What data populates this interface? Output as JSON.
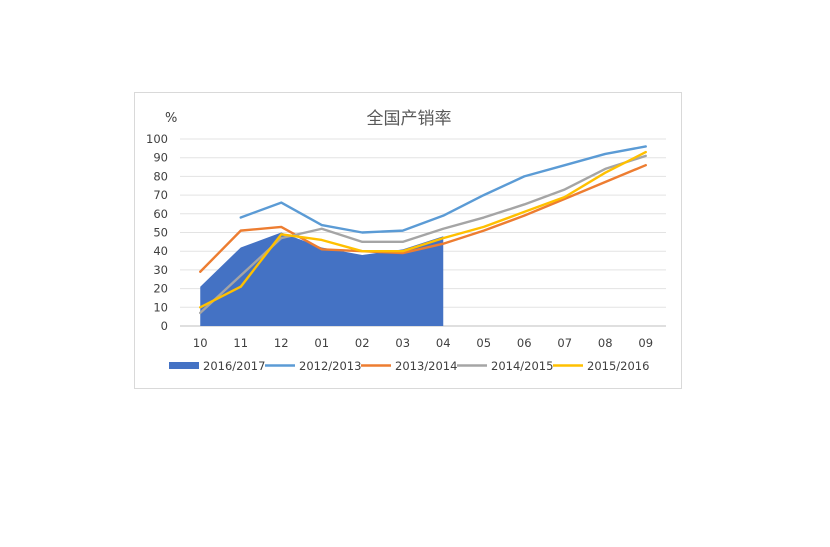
{
  "chart_data": {
    "type": "line",
    "title": "全国产销率",
    "ylabel": "%",
    "xlabel": "",
    "ylim": [
      0,
      100
    ],
    "y_ticks": [
      "0",
      "10",
      "20",
      "30",
      "40",
      "50",
      "60",
      "70",
      "80",
      "90",
      "100"
    ],
    "categories": [
      "10",
      "11",
      "12",
      "01",
      "02",
      "03",
      "04",
      "05",
      "06",
      "07",
      "08",
      "09"
    ],
    "grid": true,
    "legend_position": "bottom",
    "series": [
      {
        "name": "2016/2017",
        "kind": "area",
        "color": "#4472c4",
        "values": [
          21,
          42,
          50,
          42,
          38,
          41,
          48,
          null,
          null,
          null,
          null,
          null
        ]
      },
      {
        "name": "2012/2013",
        "kind": "line",
        "color": "#5b9bd5",
        "values": [
          null,
          58,
          66,
          54,
          50,
          51,
          59,
          70,
          80,
          86,
          92,
          96
        ]
      },
      {
        "name": "2013/2014",
        "kind": "line",
        "color": "#ed7d31",
        "values": [
          29,
          51,
          53,
          41,
          40,
          39,
          44,
          51,
          59,
          68,
          77,
          86
        ]
      },
      {
        "name": "2014/2015",
        "kind": "line",
        "color": "#a5a5a5",
        "values": [
          7,
          27,
          47,
          52,
          45,
          45,
          52,
          58,
          65,
          73,
          84,
          91
        ]
      },
      {
        "name": "2015/2016",
        "kind": "line",
        "color": "#ffc000",
        "values": [
          10,
          21,
          49,
          46,
          40,
          40,
          47,
          53,
          61,
          69,
          82,
          93
        ]
      }
    ]
  }
}
